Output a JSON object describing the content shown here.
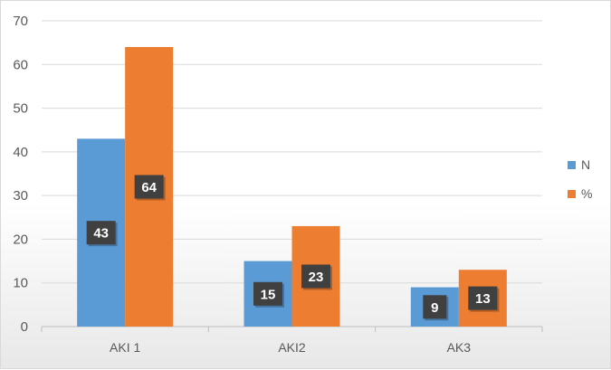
{
  "chart_data": {
    "type": "bar",
    "categories": [
      "AKI 1",
      "AKI2",
      "AK3"
    ],
    "series": [
      {
        "name": "N",
        "values": [
          43,
          15,
          9
        ],
        "color": "#5b9bd5"
      },
      {
        "name": "%",
        "values": [
          64,
          23,
          13
        ],
        "color": "#ed7d31"
      }
    ],
    "title": "",
    "xlabel": "",
    "ylabel": "",
    "ylim": [
      0,
      70
    ],
    "yticks": [
      0,
      10,
      20,
      30,
      40,
      50,
      60,
      70
    ],
    "grid": true,
    "legend": "right",
    "data_labels": true,
    "label_box_color": "#404040",
    "gridline_color": "#d9d9d9",
    "axis_color": "#bfbfbf"
  }
}
